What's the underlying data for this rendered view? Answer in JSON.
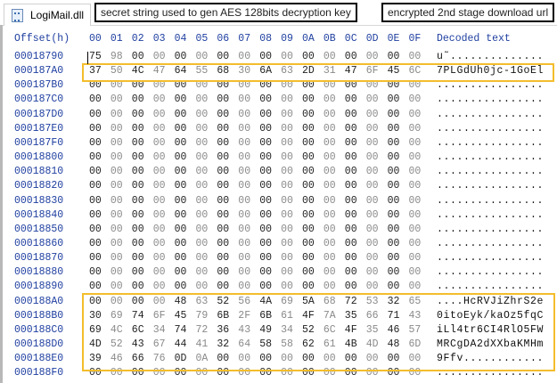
{
  "tab": {
    "title": "LogiMail.dll",
    "icon": "dll-file-icon"
  },
  "header": {
    "offset_label": "Offset(h)",
    "columns": [
      "00",
      "01",
      "02",
      "03",
      "04",
      "05",
      "06",
      "07",
      "08",
      "09",
      "0A",
      "0B",
      "0C",
      "0D",
      "0E",
      "0F"
    ],
    "decoded_label": "Decoded text"
  },
  "rows": [
    {
      "offset": "00018790",
      "bytes": "75 98 00 00 00 00 00 00 00 00 00 00 00 00 00 00",
      "text": "u˜.............."
    },
    {
      "offset": "000187A0",
      "bytes": "37 50 4C 47 64 55 68 30 6A 63 2D 31 47 6F 45 6C",
      "text": "7PLGdUh0jc-1GoEl"
    },
    {
      "offset": "000187B0",
      "bytes": "00 00 00 00 00 00 00 00 00 00 00 00 00 00 00 00",
      "text": "................"
    },
    {
      "offset": "000187C0",
      "bytes": "00 00 00 00 00 00 00 00 00 00 00 00 00 00 00 00",
      "text": "................"
    },
    {
      "offset": "000187D0",
      "bytes": "00 00 00 00 00 00 00 00 00 00 00 00 00 00 00 00",
      "text": "................"
    },
    {
      "offset": "000187E0",
      "bytes": "00 00 00 00 00 00 00 00 00 00 00 00 00 00 00 00",
      "text": "................"
    },
    {
      "offset": "000187F0",
      "bytes": "00 00 00 00 00 00 00 00 00 00 00 00 00 00 00 00",
      "text": "................"
    },
    {
      "offset": "00018800",
      "bytes": "00 00 00 00 00 00 00 00 00 00 00 00 00 00 00 00",
      "text": "................"
    },
    {
      "offset": "00018810",
      "bytes": "00 00 00 00 00 00 00 00 00 00 00 00 00 00 00 00",
      "text": "................"
    },
    {
      "offset": "00018820",
      "bytes": "00 00 00 00 00 00 00 00 00 00 00 00 00 00 00 00",
      "text": "................"
    },
    {
      "offset": "00018830",
      "bytes": "00 00 00 00 00 00 00 00 00 00 00 00 00 00 00 00",
      "text": "................"
    },
    {
      "offset": "00018840",
      "bytes": "00 00 00 00 00 00 00 00 00 00 00 00 00 00 00 00",
      "text": "................"
    },
    {
      "offset": "00018850",
      "bytes": "00 00 00 00 00 00 00 00 00 00 00 00 00 00 00 00",
      "text": "................"
    },
    {
      "offset": "00018860",
      "bytes": "00 00 00 00 00 00 00 00 00 00 00 00 00 00 00 00",
      "text": "................"
    },
    {
      "offset": "00018870",
      "bytes": "00 00 00 00 00 00 00 00 00 00 00 00 00 00 00 00",
      "text": "................"
    },
    {
      "offset": "00018880",
      "bytes": "00 00 00 00 00 00 00 00 00 00 00 00 00 00 00 00",
      "text": "................"
    },
    {
      "offset": "00018890",
      "bytes": "00 00 00 00 00 00 00 00 00 00 00 00 00 00 00 00",
      "text": "................"
    },
    {
      "offset": "000188A0",
      "bytes": "00 00 00 00 48 63 52 56 4A 69 5A 68 72 53 32 65",
      "text": "....HcRVJiZhrS2e"
    },
    {
      "offset": "000188B0",
      "bytes": "30 69 74 6F 45 79 6B 2F 6B 61 4F 7A 35 66 71 43",
      "text": "0itoEyk/kaOz5fqC"
    },
    {
      "offset": "000188C0",
      "bytes": "69 4C 6C 34 74 72 36 43 49 34 52 6C 4F 35 46 57",
      "text": "iLl4tr6CI4RlO5FW"
    },
    {
      "offset": "000188D0",
      "bytes": "4D 52 43 67 44 41 32 64 58 58 62 61 4B 4D 48 6D",
      "text": "MRCgDA2dXXbaKMHm"
    },
    {
      "offset": "000188E0",
      "bytes": "39 46 66 76 0D 0A 00 00 00 00 00 00 00 00 00 00",
      "text": "9Ffv............"
    },
    {
      "offset": "000188F0",
      "bytes": "00 00 00 00 00 00 00 00 00 00 00 00 00 00 00 00",
      "text": "................"
    }
  ],
  "annotations": {
    "key_note": "secret string used to gen AES 128bits decryption key",
    "url_note": "encrypted 2nd stage download url"
  },
  "colors": {
    "highlight": "#f3bd2c",
    "offset_text": "#1f3fa0"
  }
}
